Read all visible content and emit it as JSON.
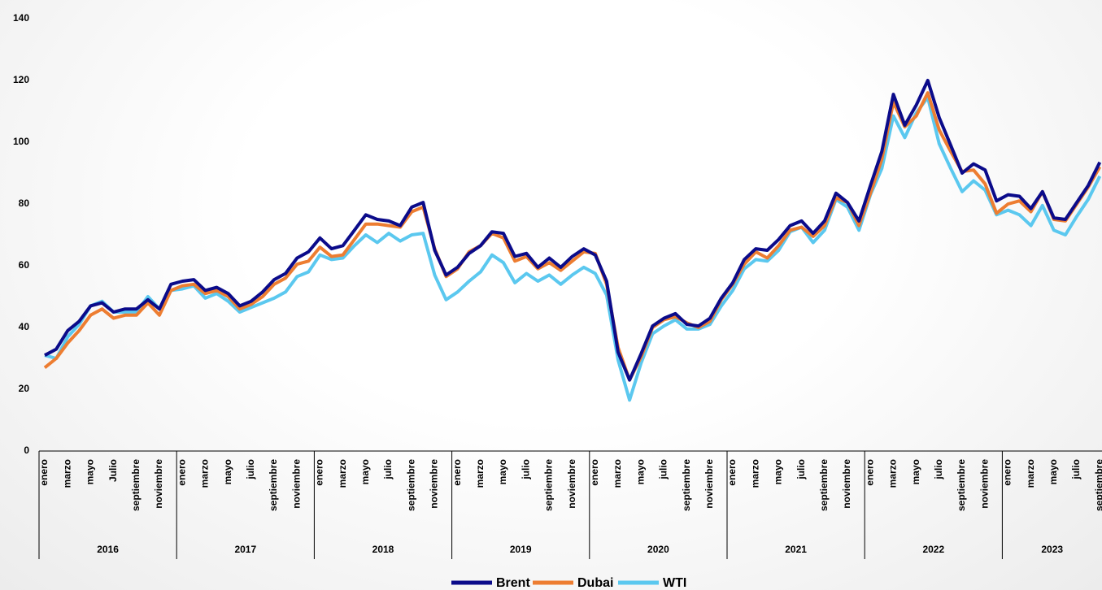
{
  "chart_data": {
    "type": "line",
    "categories": [
      "enero",
      null,
      "marzo",
      null,
      "mayo",
      null,
      "Julio",
      null,
      "septiembre",
      null,
      "noviembre",
      null,
      "enero",
      null,
      "marzo",
      null,
      "mayo",
      null,
      "julio",
      null,
      "septiembre",
      null,
      "noviembre",
      null,
      "enero",
      null,
      "marzo",
      null,
      "mayo",
      null,
      "julio",
      null,
      "septiembre",
      null,
      "noviembre",
      null,
      "enero",
      null,
      "marzo",
      null,
      "mayo",
      null,
      "julio",
      null,
      "septiembre",
      null,
      "noviembre",
      null,
      "enero",
      null,
      "marzo",
      null,
      "mayo",
      null,
      "julio",
      null,
      "septiembre",
      null,
      "noviembre",
      null,
      "enero",
      null,
      "marzo",
      null,
      "mayo",
      null,
      "julio",
      null,
      "septiembre",
      null,
      "noviembre",
      null,
      "enero",
      null,
      "marzo",
      null,
      "mayo",
      null,
      "julio",
      null,
      "septiembre",
      null,
      "noviembre",
      null,
      "enero",
      null,
      "marzo",
      null,
      "mayo",
      null,
      "julio",
      null,
      "septiembre"
    ],
    "years": [
      "2016",
      "2017",
      "2018",
      "2019",
      "2020",
      "2021",
      "2022",
      "2023"
    ],
    "series": [
      {
        "name": "Brent",
        "color": "#0b0b8a",
        "values": [
          31,
          33,
          39,
          42,
          47,
          48,
          45,
          46,
          46,
          49,
          46,
          54,
          55,
          55.5,
          52,
          53,
          51,
          47,
          48.5,
          51.5,
          55.5,
          57.5,
          62.5,
          64.5,
          69,
          65.5,
          66.5,
          71.5,
          76.5,
          75,
          74.5,
          73,
          79,
          80.5,
          65,
          57,
          59.5,
          64,
          66.5,
          71,
          70.5,
          63,
          64,
          59.5,
          62.5,
          59.5,
          63,
          65.5,
          63.5,
          55,
          32,
          23,
          31.5,
          40.5,
          43,
          44.5,
          41,
          40.5,
          43,
          49.5,
          54.5,
          62,
          65.5,
          65,
          68.5,
          73,
          74.5,
          70.5,
          74.5,
          83.5,
          80.5,
          74.5,
          86,
          97,
          115.5,
          105.5,
          112,
          120,
          108,
          99,
          90,
          93,
          91,
          81,
          83,
          82.5,
          78.5,
          84,
          75.5,
          75,
          80.5,
          86,
          93.5
        ]
      },
      {
        "name": "Dubai",
        "color": "#ed7d31",
        "values": [
          27,
          30,
          35,
          39,
          44,
          46,
          43,
          44,
          44,
          48,
          44,
          52,
          53.5,
          54,
          51,
          52,
          50,
          46,
          47.5,
          50,
          54,
          56,
          60.5,
          61.5,
          66,
          63,
          63.5,
          68.5,
          73.5,
          73.5,
          73,
          72.5,
          77.5,
          79,
          65.5,
          56.5,
          59,
          64.5,
          66.5,
          70.5,
          69,
          61.5,
          63,
          59,
          61,
          58.5,
          61.5,
          64.5,
          64,
          54,
          33.5,
          23,
          30.5,
          40,
          42.5,
          43.5,
          41.5,
          40,
          42,
          49,
          54,
          60.5,
          64.5,
          62.5,
          66.5,
          71.5,
          72.5,
          69.5,
          73,
          82,
          80.5,
          73,
          83.5,
          94.5,
          113,
          105,
          108.5,
          116,
          104,
          97,
          90.5,
          91,
          86.5,
          77,
          80,
          81,
          77.5,
          84,
          75,
          74.5,
          80,
          85.5,
          92
        ]
      },
      {
        "name": "WTI",
        "color": "#5bc8ef",
        "values": [
          31,
          30,
          37,
          41,
          47,
          48.5,
          45,
          45,
          45,
          50,
          46,
          52,
          52.5,
          53.5,
          49.5,
          51,
          48.5,
          45,
          46.5,
          48,
          49.5,
          51.5,
          56.5,
          58,
          63.5,
          62,
          62.5,
          66.5,
          70,
          67.5,
          70.5,
          68,
          70,
          70.5,
          57,
          49,
          51.5,
          55,
          58,
          63.5,
          61,
          54.5,
          57.5,
          55,
          57,
          54,
          57,
          59.5,
          57.5,
          50.5,
          29.5,
          16.5,
          28.5,
          38,
          40.5,
          42.5,
          39.5,
          39.5,
          41,
          47,
          52,
          59,
          62,
          61.5,
          65,
          71,
          72.5,
          67.5,
          71.5,
          81.5,
          79,
          71.5,
          83,
          91.5,
          108.5,
          101.5,
          109.5,
          114.5,
          99.5,
          91.5,
          84,
          87.5,
          84.5,
          76.5,
          78,
          76.5,
          73,
          79.5,
          71.5,
          70,
          76,
          81.5,
          89
        ]
      }
    ],
    "ylim": [
      0,
      140
    ],
    "yticks": [
      0,
      20,
      40,
      60,
      80,
      100,
      120,
      140
    ],
    "grid": false,
    "legend": "bottom"
  }
}
